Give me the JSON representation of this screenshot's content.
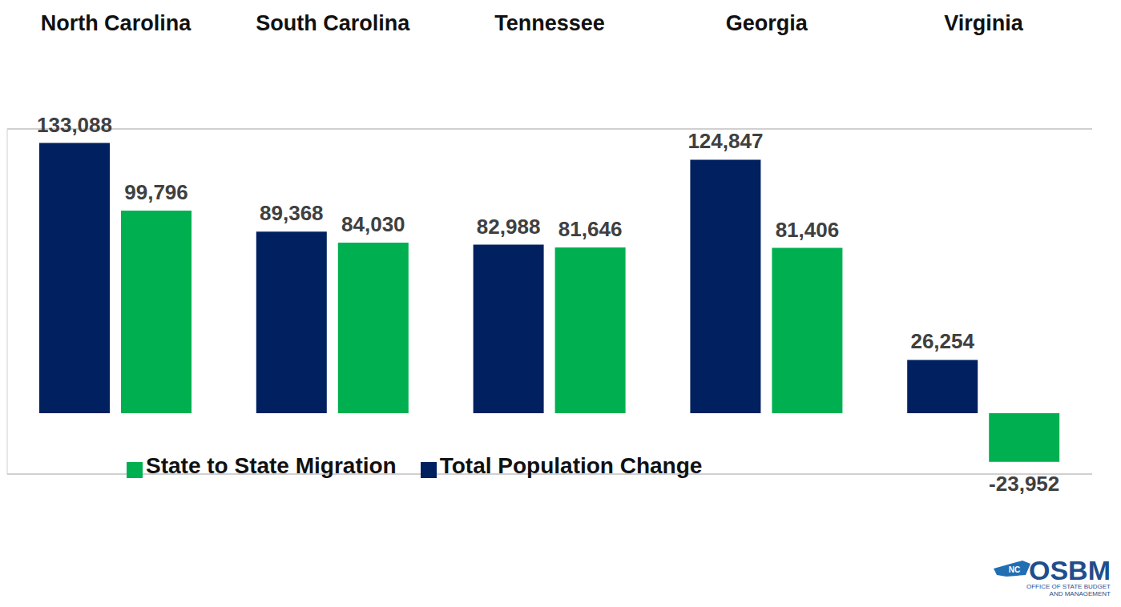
{
  "chart_data": {
    "type": "bar",
    "categories": [
      "North Carolina",
      "South Carolina",
      "Tennessee",
      "Georgia",
      "Virginia"
    ],
    "series": [
      {
        "name": "Total Population Change",
        "color": "#002060",
        "values": [
          133088,
          89368,
          82988,
          124847,
          26254
        ],
        "value_labels": [
          "133,088",
          "89,368",
          "82,988",
          "124,847",
          "26,254"
        ]
      },
      {
        "name": "State to State Migration",
        "color": "#00B050",
        "values": [
          99796,
          84030,
          81646,
          81406,
          -23952
        ],
        "value_labels": [
          "99,796",
          "84,030",
          "81,646",
          "81,406",
          "-23,952"
        ]
      }
    ],
    "ylim": [
      -30000,
      140000
    ],
    "yticks": [
      0
    ],
    "grid": true,
    "data_labels": true,
    "tick_labels": "x",
    "legend": "bottom",
    "annotations": [
      "NC",
      "OSBM",
      "OFFICE OF STATE BUDGET",
      "AND MANAGEMENT"
    ]
  }
}
